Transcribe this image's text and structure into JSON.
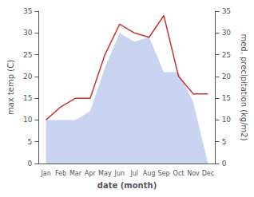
{
  "chart_data": {
    "type": "line",
    "xlabel": "date (month)",
    "ylabel": "max temp (C)",
    "y2label": "med. precipitation (kg/m2)",
    "categories": [
      "Jan",
      "Feb",
      "Mar",
      "Apr",
      "May",
      "Jun",
      "Jul",
      "Aug",
      "Sep",
      "Oct",
      "Nov",
      "Dec"
    ],
    "series": [
      {
        "type": "area",
        "axis": "y2",
        "color": "#c8d4f0",
        "values": [
          10,
          10,
          10,
          12,
          22,
          30,
          28,
          29,
          21,
          21,
          14,
          0
        ]
      },
      {
        "type": "line",
        "color": "#cc3333",
        "values": [
          10,
          13,
          15,
          15,
          25,
          32,
          30,
          29,
          34,
          20,
          16,
          16
        ]
      }
    ],
    "ylim": [
      0,
      35
    ],
    "yticks": [
      0,
      5,
      10,
      15,
      20,
      25,
      30,
      35
    ],
    "y2lim": [
      0,
      35
    ],
    "y2ticks": [
      0,
      5,
      10,
      15,
      20,
      25,
      30,
      35
    ],
    "grid": false
  }
}
